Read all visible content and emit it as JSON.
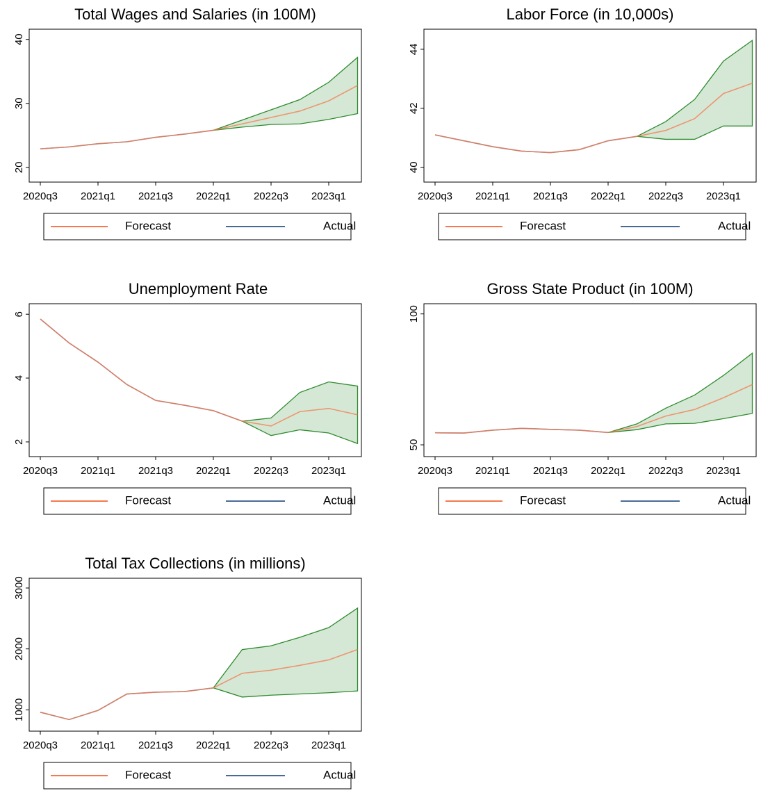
{
  "chart_data": [
    {
      "type": "line",
      "title": "Total Wages and Salaries (in 100M)",
      "categories": [
        "2020q3",
        null,
        "2021q1",
        null,
        "2021q3",
        null,
        "2022q1",
        null,
        "2022q3",
        null,
        "2023q1",
        null
      ],
      "series": [
        {
          "name": "Forecast",
          "color": "#f4794e",
          "values": [
            22.9,
            23.2,
            23.7,
            24.0,
            24.7,
            25.2,
            25.8,
            26.8,
            27.8,
            28.8,
            30.4,
            32.8
          ]
        },
        {
          "name": "Actual",
          "color": "#4a6a96",
          "values": [
            22.9,
            23.2,
            23.7,
            24.0,
            24.7,
            25.2,
            25.8,
            null,
            null,
            null,
            null,
            null
          ]
        }
      ],
      "band": {
        "color": "#2e8b2e",
        "upper": [
          null,
          null,
          null,
          null,
          null,
          null,
          25.8,
          27.4,
          29.0,
          30.6,
          33.3,
          37.2
        ],
        "lower": [
          null,
          null,
          null,
          null,
          null,
          null,
          25.8,
          26.3,
          26.7,
          26.8,
          27.5,
          28.4
        ]
      },
      "ylim": [
        17.7,
        41.6
      ],
      "yticks": [
        20,
        30,
        40
      ]
    },
    {
      "type": "line",
      "title": "Labor Force (in 10,000s)",
      "categories": [
        "2020q3",
        null,
        "2021q1",
        null,
        "2021q3",
        null,
        "2022q1",
        null,
        "2022q3",
        null,
        "2023q1",
        null
      ],
      "series": [
        {
          "name": "Forecast",
          "color": "#f4794e",
          "values": [
            41.1,
            40.9,
            40.7,
            40.55,
            40.5,
            40.6,
            40.9,
            41.05,
            41.25,
            41.65,
            42.5,
            42.85
          ]
        },
        {
          "name": "Actual",
          "color": "#4a6a96",
          "values": [
            41.1,
            40.9,
            40.7,
            40.55,
            40.5,
            40.6,
            40.9,
            41.05,
            null,
            null,
            null,
            null
          ]
        }
      ],
      "band": {
        "color": "#2e8b2e",
        "upper": [
          null,
          null,
          null,
          null,
          null,
          null,
          null,
          41.05,
          41.55,
          42.3,
          43.6,
          44.3
        ],
        "lower": [
          null,
          null,
          null,
          null,
          null,
          null,
          null,
          41.05,
          40.95,
          40.95,
          41.4,
          41.4
        ]
      },
      "ylim": [
        39.5,
        44.68
      ],
      "yticks": [
        40,
        42,
        44
      ]
    },
    {
      "type": "line",
      "title": "Unemployment Rate",
      "categories": [
        "2020q3",
        null,
        "2021q1",
        null,
        "2021q3",
        null,
        "2022q1",
        null,
        "2022q3",
        null,
        "2023q1",
        null
      ],
      "series": [
        {
          "name": "Forecast",
          "color": "#f4794e",
          "values": [
            5.85,
            5.1,
            4.5,
            3.8,
            3.3,
            3.15,
            2.98,
            2.65,
            2.5,
            2.95,
            3.05,
            2.85
          ]
        },
        {
          "name": "Actual",
          "color": "#4a6a96",
          "values": [
            5.85,
            5.1,
            4.5,
            3.8,
            3.3,
            3.15,
            2.98,
            2.65,
            null,
            null,
            null,
            null
          ]
        }
      ],
      "band": {
        "color": "#2e8b2e",
        "upper": [
          null,
          null,
          null,
          null,
          null,
          null,
          null,
          2.65,
          2.75,
          3.55,
          3.88,
          3.75
        ],
        "lower": [
          null,
          null,
          null,
          null,
          null,
          null,
          null,
          2.65,
          2.2,
          2.38,
          2.28,
          1.95
        ]
      },
      "ylim": [
        1.54,
        6.33
      ],
      "yticks": [
        2,
        4,
        6
      ]
    },
    {
      "type": "line",
      "title": "Gross State Product (in 100M)",
      "categories": [
        "2020q3",
        null,
        "2021q1",
        null,
        "2021q3",
        null,
        "2022q1",
        null,
        "2022q3",
        null,
        "2023q1",
        null
      ],
      "series": [
        {
          "name": "Forecast",
          "color": "#f4794e",
          "values": [
            54.6,
            54.5,
            55.6,
            56.3,
            55.9,
            55.6,
            54.7,
            57,
            61,
            63.5,
            68,
            73
          ]
        },
        {
          "name": "Actual",
          "color": "#4a6a96",
          "values": [
            54.6,
            54.5,
            55.6,
            56.3,
            55.9,
            55.6,
            54.7,
            null,
            null,
            null,
            null,
            null
          ]
        }
      ],
      "band": {
        "color": "#2e8b2e",
        "upper": [
          null,
          null,
          null,
          null,
          null,
          null,
          54.7,
          58,
          64,
          69,
          76.5,
          85
        ],
        "lower": [
          null,
          null,
          null,
          null,
          null,
          null,
          54.7,
          55.8,
          58,
          58.2,
          60,
          62
        ]
      },
      "ylim": [
        45.5,
        103.9
      ],
      "yticks": [
        50,
        100
      ]
    },
    {
      "type": "line",
      "title": "Total Tax Collections (in millions)",
      "categories": [
        "2020q3",
        null,
        "2021q1",
        null,
        "2021q3",
        null,
        "2022q1",
        null,
        "2022q3",
        null,
        "2023q1",
        null
      ],
      "series": [
        {
          "name": "Forecast",
          "color": "#f4794e",
          "values": [
            960,
            840,
            990,
            1260,
            1290,
            1300,
            1360,
            1600,
            1650,
            1730,
            1820,
            1990
          ]
        },
        {
          "name": "Actual",
          "color": "#4a6a96",
          "values": [
            960,
            840,
            990,
            1260,
            1290,
            1300,
            1360,
            null,
            null,
            null,
            null,
            null
          ]
        }
      ],
      "band": {
        "color": "#2e8b2e",
        "upper": [
          null,
          null,
          null,
          null,
          null,
          null,
          1360,
          1990,
          2050,
          2190,
          2350,
          2670
        ],
        "lower": [
          null,
          null,
          null,
          null,
          null,
          null,
          1360,
          1210,
          1240,
          1260,
          1280,
          1310
        ]
      },
      "ylim": [
        650,
        3160
      ],
      "yticks": [
        1000,
        2000,
        3000
      ]
    }
  ]
}
